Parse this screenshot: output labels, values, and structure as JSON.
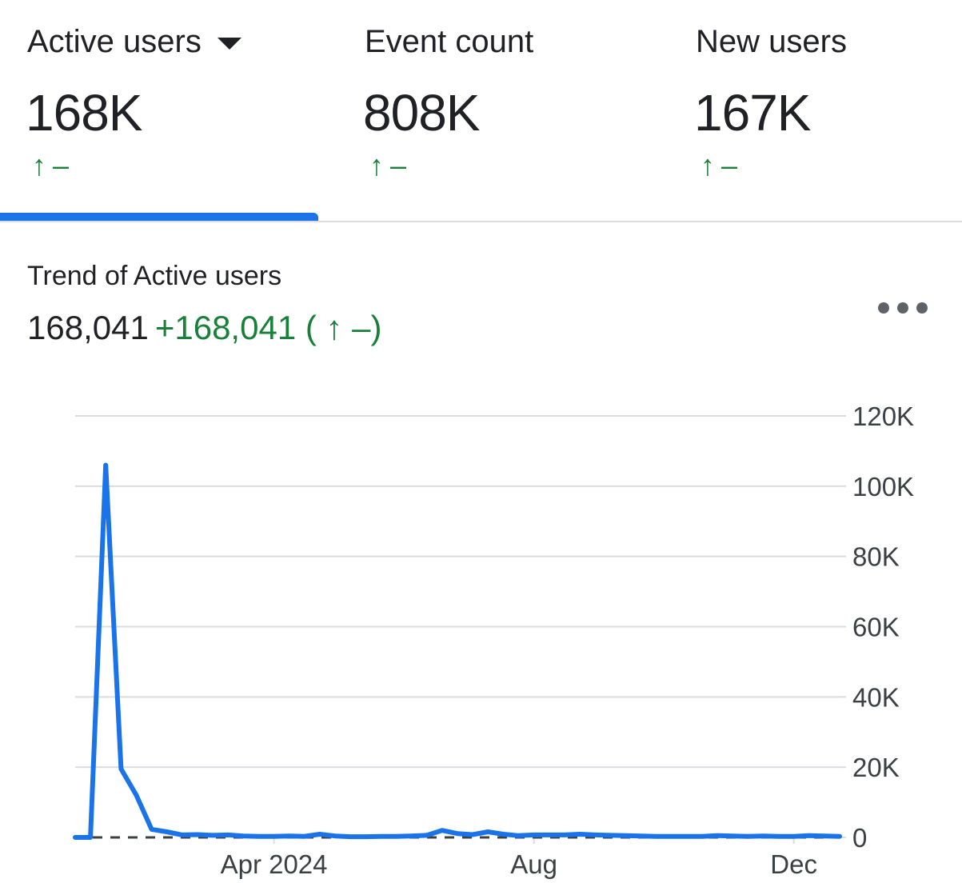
{
  "metrics": [
    {
      "label": "Active users",
      "value": "168K",
      "arrow": "↑",
      "change": "–",
      "active": true,
      "has_dropdown": true
    },
    {
      "label": "Event count",
      "value": "808K",
      "arrow": "↑",
      "change": "–",
      "active": false
    },
    {
      "label": "New users",
      "value": "167K",
      "arrow": "↑",
      "change": "–",
      "active": false
    }
  ],
  "trend": {
    "title": "Trend of Active users",
    "total": "168,041",
    "change": "+168,041 ( ↑ –)"
  },
  "more_icon": "more-horizontal-icon",
  "colors": {
    "accent": "#1a73e8",
    "positive": "#188038",
    "gridline": "#dadce0",
    "text": "#202124"
  },
  "chart_data": {
    "type": "line",
    "x_tick_labels": [
      "Apr 2024",
      "Aug",
      "Dec"
    ],
    "x_tick_index": [
      13,
      30,
      47
    ],
    "y_ticks": [
      0,
      20000,
      40000,
      60000,
      80000,
      100000,
      120000
    ],
    "y_tick_labels": [
      "0",
      "20K",
      "40K",
      "60K",
      "80K",
      "100K",
      "120K"
    ],
    "ylim": [
      0,
      120000
    ],
    "grid": true,
    "series": [
      {
        "values": [
          0,
          0,
          106000,
          19500,
          12000,
          2300,
          1600,
          700,
          800,
          600,
          700,
          400,
          300,
          300,
          400,
          300,
          900,
          400,
          200,
          200,
          300,
          300,
          400,
          600,
          2000,
          1100,
          800,
          1600,
          900,
          500,
          700,
          700,
          700,
          900,
          700,
          600,
          500,
          400,
          300,
          300,
          300,
          300,
          500,
          400,
          300,
          400,
          300,
          300,
          500,
          400,
          300
        ],
        "comparison": [
          0,
          0,
          0,
          0,
          0,
          0,
          0,
          0,
          0,
          0,
          0,
          0,
          0,
          0,
          0,
          0,
          0,
          0,
          0,
          0,
          0,
          0,
          0,
          0,
          0,
          0,
          0,
          0,
          0,
          0,
          0,
          0,
          0,
          0,
          0,
          0,
          0,
          0,
          0,
          0,
          0,
          0,
          0,
          0,
          0,
          0,
          0,
          0,
          0,
          0,
          0
        ]
      }
    ]
  }
}
